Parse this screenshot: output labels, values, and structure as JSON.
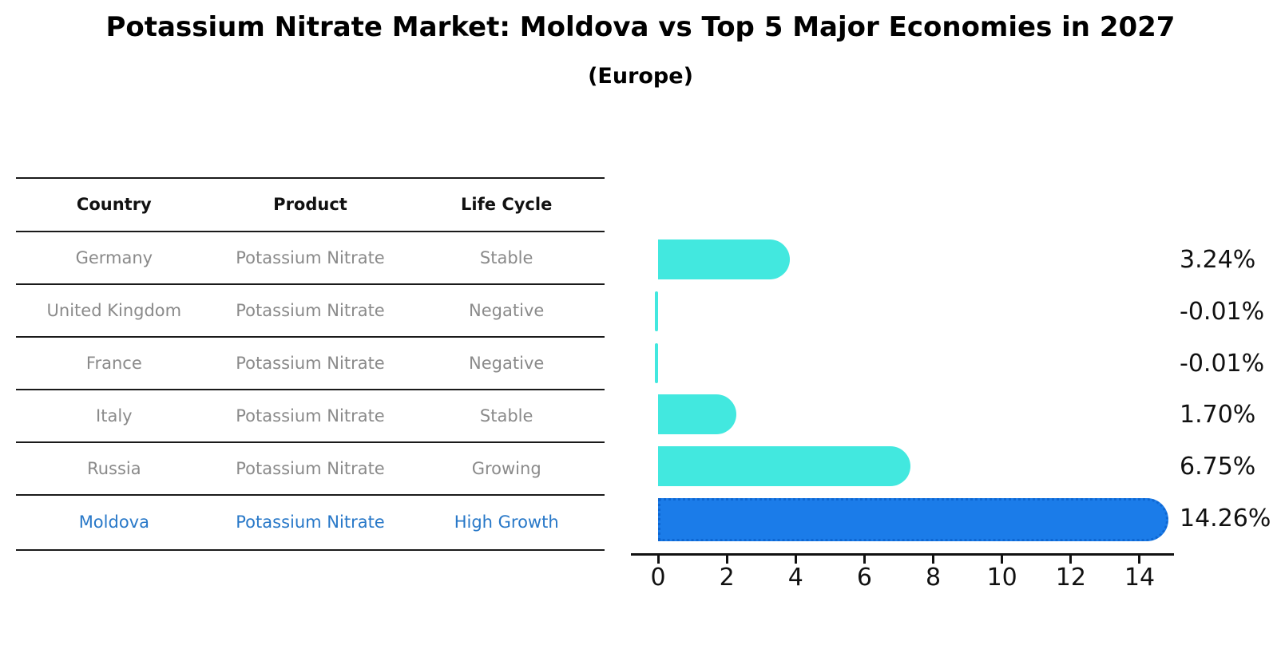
{
  "title": "Potassium Nitrate Market: Moldova vs Top 5 Major Economies in 2027",
  "subtitle": "(Europe)",
  "table": {
    "headers": [
      "Country",
      "Product",
      "Life Cycle"
    ],
    "rows": [
      {
        "country": "Germany",
        "product": "Potassium Nitrate",
        "life_cycle": "Stable",
        "highlight": false
      },
      {
        "country": "United Kingdom",
        "product": "Potassium Nitrate",
        "life_cycle": "Negative",
        "highlight": false
      },
      {
        "country": "France",
        "product": "Potassium Nitrate",
        "life_cycle": "Negative",
        "highlight": false
      },
      {
        "country": "Italy",
        "product": "Potassium Nitrate",
        "life_cycle": "Stable",
        "highlight": false
      },
      {
        "country": "Russia",
        "product": "Potassium Nitrate",
        "life_cycle": "Growing",
        "highlight": false
      },
      {
        "country": "Moldova",
        "product": "Potassium Nitrate",
        "life_cycle": "High Growth",
        "highlight": true
      }
    ]
  },
  "chart_data": {
    "type": "bar",
    "orientation": "horizontal",
    "title": "Potassium Nitrate Market: Moldova vs Top 5 Major Economies in 2027 (Europe)",
    "categories": [
      "Germany",
      "United Kingdom",
      "France",
      "Italy",
      "Russia",
      "Moldova"
    ],
    "values": [
      3.24,
      -0.01,
      -0.01,
      1.7,
      6.75,
      14.26
    ],
    "value_labels": [
      "3.24%",
      "-0.01%",
      "-0.01%",
      "1.70%",
      "6.75%",
      "14.26%"
    ],
    "highlight_index": 5,
    "x_ticks": [
      "0",
      "2",
      "4",
      "6",
      "8",
      "10",
      "12",
      "14"
    ],
    "xlim": [
      0,
      15
    ],
    "xlabel": "",
    "ylabel": "",
    "grid": false,
    "legend": "none"
  },
  "colors": {
    "bar": "#42E8DF",
    "highlight_bar": "#1B7CE9",
    "highlight_border": "#0E67D2",
    "highlight_text": "#2878C8",
    "row_text": "#8A8A8A",
    "line": "#1A1A1A",
    "label_text": "#111111"
  }
}
